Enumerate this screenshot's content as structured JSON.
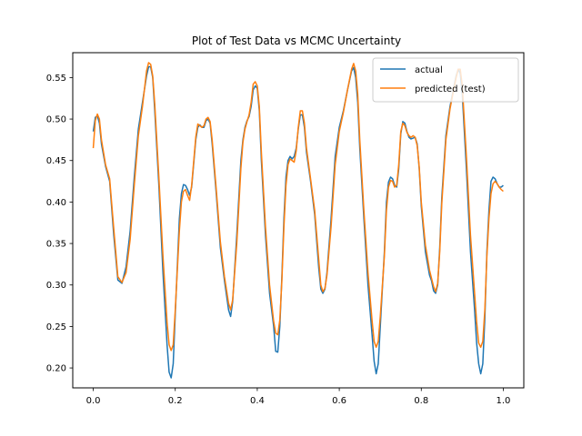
{
  "chart_data": {
    "type": "line",
    "title": "Plot of Test Data vs MCMC Uncertainty",
    "xlabel": "",
    "ylabel": "",
    "xlim": [
      -0.05,
      1.05
    ],
    "ylim": [
      0.176,
      0.58
    ],
    "xticks": [
      0.0,
      0.2,
      0.4,
      0.6,
      0.8,
      1.0
    ],
    "xtick_labels": [
      "0.0",
      "0.2",
      "0.4",
      "0.6",
      "0.8",
      "1.0"
    ],
    "yticks": [
      0.2,
      0.25,
      0.3,
      0.35,
      0.4,
      0.45,
      0.5,
      0.55
    ],
    "ytick_labels": [
      "0.20",
      "0.25",
      "0.30",
      "0.35",
      "0.40",
      "0.45",
      "0.50",
      "0.55"
    ],
    "grid": false,
    "legend_position": "top-right",
    "series": [
      {
        "name": "actual",
        "color": "#1f77b4",
        "points": [
          [
            0.0,
            0.485
          ],
          [
            0.005,
            0.502
          ],
          [
            0.01,
            0.504
          ],
          [
            0.015,
            0.495
          ],
          [
            0.02,
            0.47
          ],
          [
            0.03,
            0.443
          ],
          [
            0.04,
            0.425
          ],
          [
            0.05,
            0.36
          ],
          [
            0.06,
            0.306
          ],
          [
            0.07,
            0.302
          ],
          [
            0.08,
            0.322
          ],
          [
            0.09,
            0.365
          ],
          [
            0.1,
            0.43
          ],
          [
            0.11,
            0.488
          ],
          [
            0.12,
            0.52
          ],
          [
            0.13,
            0.552
          ],
          [
            0.135,
            0.563
          ],
          [
            0.14,
            0.563
          ],
          [
            0.145,
            0.55
          ],
          [
            0.15,
            0.51
          ],
          [
            0.16,
            0.42
          ],
          [
            0.17,
            0.315
          ],
          [
            0.18,
            0.228
          ],
          [
            0.185,
            0.195
          ],
          [
            0.19,
            0.188
          ],
          [
            0.195,
            0.205
          ],
          [
            0.2,
            0.265
          ],
          [
            0.21,
            0.38
          ],
          [
            0.215,
            0.41
          ],
          [
            0.22,
            0.421
          ],
          [
            0.225,
            0.42
          ],
          [
            0.23,
            0.415
          ],
          [
            0.235,
            0.408
          ],
          [
            0.24,
            0.418
          ],
          [
            0.25,
            0.475
          ],
          [
            0.255,
            0.49
          ],
          [
            0.26,
            0.493
          ],
          [
            0.265,
            0.49
          ],
          [
            0.27,
            0.49
          ],
          [
            0.275,
            0.498
          ],
          [
            0.28,
            0.5
          ],
          [
            0.285,
            0.495
          ],
          [
            0.29,
            0.47
          ],
          [
            0.3,
            0.41
          ],
          [
            0.31,
            0.345
          ],
          [
            0.32,
            0.305
          ],
          [
            0.33,
            0.27
          ],
          [
            0.335,
            0.262
          ],
          [
            0.34,
            0.28
          ],
          [
            0.35,
            0.36
          ],
          [
            0.36,
            0.45
          ],
          [
            0.365,
            0.475
          ],
          [
            0.37,
            0.49
          ],
          [
            0.375,
            0.498
          ],
          [
            0.38,
            0.503
          ],
          [
            0.385,
            0.515
          ],
          [
            0.39,
            0.535
          ],
          [
            0.395,
            0.54
          ],
          [
            0.4,
            0.537
          ],
          [
            0.405,
            0.51
          ],
          [
            0.41,
            0.45
          ],
          [
            0.42,
            0.36
          ],
          [
            0.43,
            0.29
          ],
          [
            0.44,
            0.25
          ],
          [
            0.445,
            0.22
          ],
          [
            0.45,
            0.219
          ],
          [
            0.455,
            0.25
          ],
          [
            0.46,
            0.31
          ],
          [
            0.465,
            0.38
          ],
          [
            0.47,
            0.43
          ],
          [
            0.475,
            0.45
          ],
          [
            0.48,
            0.455
          ],
          [
            0.485,
            0.452
          ],
          [
            0.49,
            0.455
          ],
          [
            0.495,
            0.465
          ],
          [
            0.5,
            0.488
          ],
          [
            0.505,
            0.505
          ],
          [
            0.51,
            0.505
          ],
          [
            0.515,
            0.49
          ],
          [
            0.52,
            0.46
          ],
          [
            0.53,
            0.425
          ],
          [
            0.54,
            0.385
          ],
          [
            0.55,
            0.32
          ],
          [
            0.555,
            0.295
          ],
          [
            0.56,
            0.29
          ],
          [
            0.565,
            0.295
          ],
          [
            0.57,
            0.315
          ],
          [
            0.58,
            0.38
          ],
          [
            0.59,
            0.455
          ],
          [
            0.6,
            0.49
          ],
          [
            0.61,
            0.51
          ],
          [
            0.62,
            0.535
          ],
          [
            0.63,
            0.558
          ],
          [
            0.635,
            0.562
          ],
          [
            0.64,
            0.55
          ],
          [
            0.645,
            0.52
          ],
          [
            0.65,
            0.465
          ],
          [
            0.66,
            0.38
          ],
          [
            0.67,
            0.3
          ],
          [
            0.68,
            0.24
          ],
          [
            0.685,
            0.208
          ],
          [
            0.69,
            0.193
          ],
          [
            0.695,
            0.205
          ],
          [
            0.7,
            0.25
          ],
          [
            0.71,
            0.34
          ],
          [
            0.715,
            0.4
          ],
          [
            0.72,
            0.424
          ],
          [
            0.725,
            0.43
          ],
          [
            0.73,
            0.428
          ],
          [
            0.735,
            0.42
          ],
          [
            0.74,
            0.418
          ],
          [
            0.745,
            0.44
          ],
          [
            0.75,
            0.482
          ],
          [
            0.755,
            0.497
          ],
          [
            0.76,
            0.495
          ],
          [
            0.765,
            0.485
          ],
          [
            0.77,
            0.478
          ],
          [
            0.775,
            0.476
          ],
          [
            0.78,
            0.477
          ],
          [
            0.785,
            0.478
          ],
          [
            0.79,
            0.47
          ],
          [
            0.795,
            0.44
          ],
          [
            0.8,
            0.395
          ],
          [
            0.81,
            0.34
          ],
          [
            0.82,
            0.312
          ],
          [
            0.825,
            0.305
          ],
          [
            0.83,
            0.293
          ],
          [
            0.835,
            0.29
          ],
          [
            0.84,
            0.3
          ],
          [
            0.845,
            0.345
          ],
          [
            0.85,
            0.405
          ],
          [
            0.86,
            0.48
          ],
          [
            0.87,
            0.515
          ],
          [
            0.88,
            0.54
          ],
          [
            0.885,
            0.552
          ],
          [
            0.89,
            0.56
          ],
          [
            0.895,
            0.555
          ],
          [
            0.9,
            0.53
          ],
          [
            0.91,
            0.44
          ],
          [
            0.92,
            0.34
          ],
          [
            0.93,
            0.27
          ],
          [
            0.935,
            0.23
          ],
          [
            0.94,
            0.205
          ],
          [
            0.945,
            0.193
          ],
          [
            0.95,
            0.205
          ],
          [
            0.955,
            0.26
          ],
          [
            0.96,
            0.34
          ],
          [
            0.965,
            0.39
          ],
          [
            0.97,
            0.425
          ],
          [
            0.975,
            0.43
          ],
          [
            0.98,
            0.428
          ],
          [
            0.985,
            0.422
          ],
          [
            0.99,
            0.418
          ],
          [
            0.995,
            0.418
          ],
          [
            1.0,
            0.42
          ]
        ]
      },
      {
        "name": "predicted (test)",
        "color": "#ff7f0e",
        "points": [
          [
            0.0,
            0.465
          ],
          [
            0.005,
            0.498
          ],
          [
            0.01,
            0.506
          ],
          [
            0.015,
            0.5
          ],
          [
            0.02,
            0.475
          ],
          [
            0.03,
            0.445
          ],
          [
            0.04,
            0.428
          ],
          [
            0.05,
            0.368
          ],
          [
            0.06,
            0.31
          ],
          [
            0.07,
            0.303
          ],
          [
            0.08,
            0.315
          ],
          [
            0.09,
            0.355
          ],
          [
            0.1,
            0.42
          ],
          [
            0.11,
            0.48
          ],
          [
            0.12,
            0.515
          ],
          [
            0.13,
            0.558
          ],
          [
            0.135,
            0.568
          ],
          [
            0.14,
            0.566
          ],
          [
            0.145,
            0.552
          ],
          [
            0.15,
            0.518
          ],
          [
            0.16,
            0.43
          ],
          [
            0.17,
            0.335
          ],
          [
            0.18,
            0.255
          ],
          [
            0.185,
            0.228
          ],
          [
            0.19,
            0.221
          ],
          [
            0.195,
            0.228
          ],
          [
            0.2,
            0.27
          ],
          [
            0.21,
            0.365
          ],
          [
            0.215,
            0.4
          ],
          [
            0.22,
            0.413
          ],
          [
            0.225,
            0.415
          ],
          [
            0.23,
            0.408
          ],
          [
            0.235,
            0.402
          ],
          [
            0.24,
            0.42
          ],
          [
            0.25,
            0.478
          ],
          [
            0.255,
            0.494
          ],
          [
            0.26,
            0.492
          ],
          [
            0.265,
            0.49
          ],
          [
            0.27,
            0.492
          ],
          [
            0.275,
            0.5
          ],
          [
            0.28,
            0.502
          ],
          [
            0.285,
            0.497
          ],
          [
            0.29,
            0.475
          ],
          [
            0.3,
            0.415
          ],
          [
            0.31,
            0.352
          ],
          [
            0.32,
            0.31
          ],
          [
            0.33,
            0.278
          ],
          [
            0.335,
            0.27
          ],
          [
            0.34,
            0.282
          ],
          [
            0.35,
            0.35
          ],
          [
            0.36,
            0.44
          ],
          [
            0.365,
            0.472
          ],
          [
            0.37,
            0.488
          ],
          [
            0.375,
            0.497
          ],
          [
            0.38,
            0.505
          ],
          [
            0.385,
            0.52
          ],
          [
            0.39,
            0.542
          ],
          [
            0.395,
            0.545
          ],
          [
            0.4,
            0.54
          ],
          [
            0.405,
            0.515
          ],
          [
            0.41,
            0.46
          ],
          [
            0.42,
            0.37
          ],
          [
            0.43,
            0.3
          ],
          [
            0.44,
            0.256
          ],
          [
            0.445,
            0.242
          ],
          [
            0.45,
            0.24
          ],
          [
            0.455,
            0.258
          ],
          [
            0.46,
            0.305
          ],
          [
            0.465,
            0.37
          ],
          [
            0.47,
            0.42
          ],
          [
            0.475,
            0.445
          ],
          [
            0.48,
            0.452
          ],
          [
            0.485,
            0.45
          ],
          [
            0.49,
            0.448
          ],
          [
            0.495,
            0.462
          ],
          [
            0.5,
            0.49
          ],
          [
            0.505,
            0.51
          ],
          [
            0.51,
            0.51
          ],
          [
            0.515,
            0.495
          ],
          [
            0.52,
            0.465
          ],
          [
            0.53,
            0.428
          ],
          [
            0.54,
            0.39
          ],
          [
            0.55,
            0.33
          ],
          [
            0.555,
            0.3
          ],
          [
            0.56,
            0.292
          ],
          [
            0.565,
            0.296
          ],
          [
            0.57,
            0.312
          ],
          [
            0.58,
            0.37
          ],
          [
            0.59,
            0.445
          ],
          [
            0.6,
            0.485
          ],
          [
            0.61,
            0.508
          ],
          [
            0.62,
            0.535
          ],
          [
            0.63,
            0.56
          ],
          [
            0.635,
            0.567
          ],
          [
            0.64,
            0.558
          ],
          [
            0.645,
            0.53
          ],
          [
            0.65,
            0.475
          ],
          [
            0.66,
            0.39
          ],
          [
            0.67,
            0.315
          ],
          [
            0.68,
            0.257
          ],
          [
            0.685,
            0.232
          ],
          [
            0.69,
            0.225
          ],
          [
            0.695,
            0.232
          ],
          [
            0.7,
            0.262
          ],
          [
            0.71,
            0.335
          ],
          [
            0.715,
            0.39
          ],
          [
            0.72,
            0.418
          ],
          [
            0.725,
            0.426
          ],
          [
            0.73,
            0.425
          ],
          [
            0.735,
            0.418
          ],
          [
            0.74,
            0.42
          ],
          [
            0.745,
            0.445
          ],
          [
            0.75,
            0.485
          ],
          [
            0.755,
            0.495
          ],
          [
            0.76,
            0.492
          ],
          [
            0.765,
            0.484
          ],
          [
            0.77,
            0.48
          ],
          [
            0.775,
            0.478
          ],
          [
            0.78,
            0.48
          ],
          [
            0.785,
            0.478
          ],
          [
            0.79,
            0.468
          ],
          [
            0.795,
            0.442
          ],
          [
            0.8,
            0.4
          ],
          [
            0.81,
            0.348
          ],
          [
            0.82,
            0.318
          ],
          [
            0.825,
            0.308
          ],
          [
            0.83,
            0.298
          ],
          [
            0.835,
            0.292
          ],
          [
            0.84,
            0.302
          ],
          [
            0.845,
            0.34
          ],
          [
            0.85,
            0.398
          ],
          [
            0.86,
            0.475
          ],
          [
            0.87,
            0.512
          ],
          [
            0.88,
            0.538
          ],
          [
            0.885,
            0.55
          ],
          [
            0.89,
            0.56
          ],
          [
            0.895,
            0.56
          ],
          [
            0.9,
            0.54
          ],
          [
            0.91,
            0.455
          ],
          [
            0.92,
            0.36
          ],
          [
            0.93,
            0.29
          ],
          [
            0.935,
            0.255
          ],
          [
            0.94,
            0.23
          ],
          [
            0.945,
            0.225
          ],
          [
            0.95,
            0.232
          ],
          [
            0.955,
            0.27
          ],
          [
            0.96,
            0.335
          ],
          [
            0.965,
            0.38
          ],
          [
            0.97,
            0.41
          ],
          [
            0.975,
            0.422
          ],
          [
            0.98,
            0.425
          ],
          [
            0.985,
            0.422
          ],
          [
            0.99,
            0.418
          ],
          [
            0.995,
            0.415
          ],
          [
            1.0,
            0.413
          ]
        ]
      }
    ]
  }
}
